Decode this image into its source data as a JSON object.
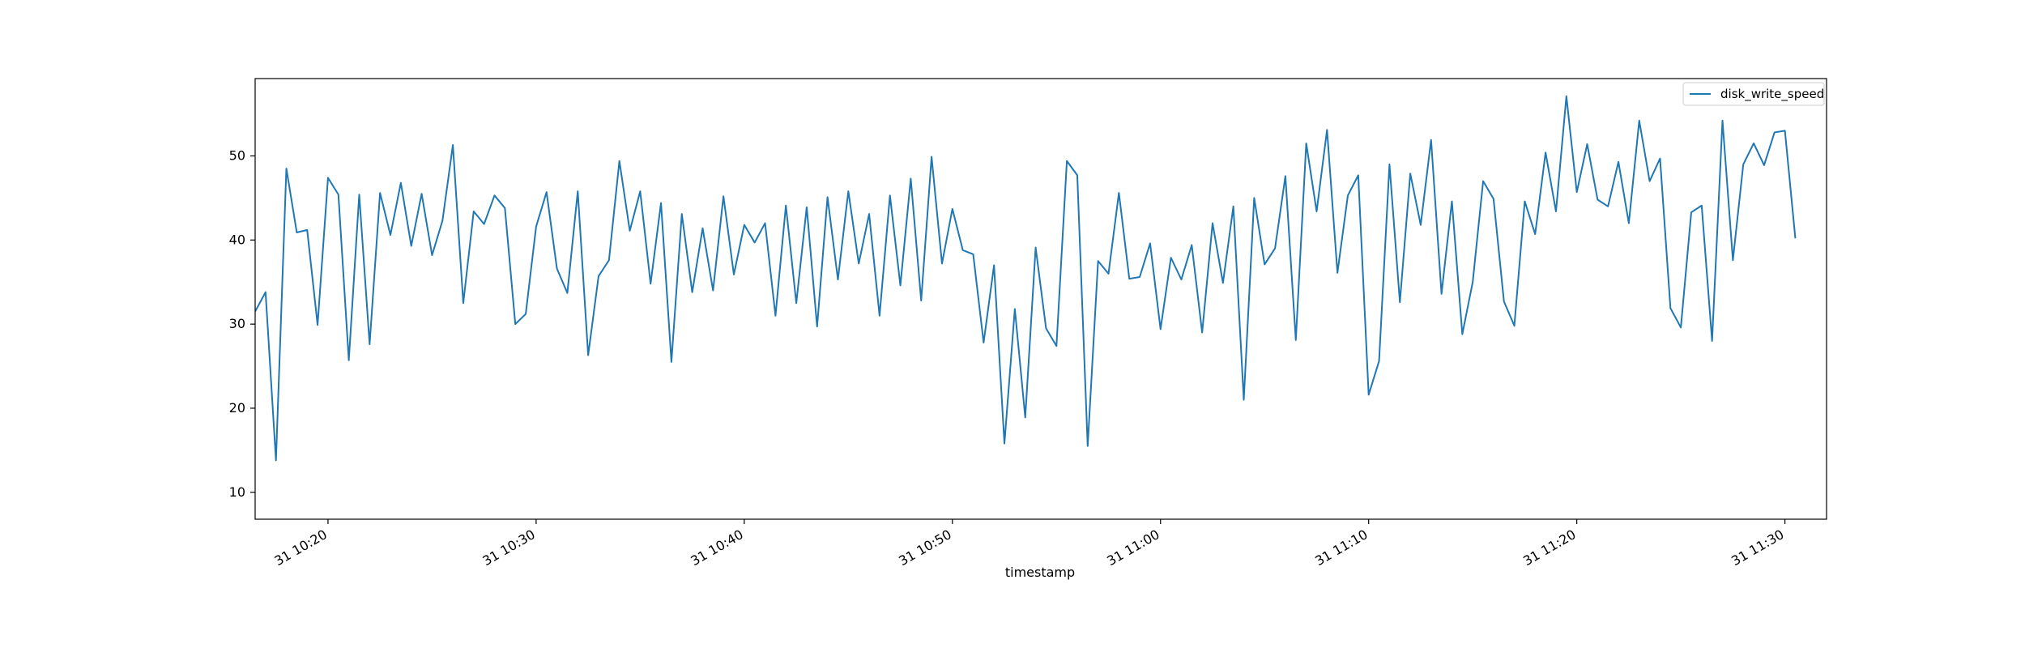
{
  "chart_data": {
    "type": "line",
    "title": "",
    "xlabel": "timestamp",
    "ylabel": "",
    "x_ticks": [
      "31 10:20",
      "31 10:30",
      "31 10:40",
      "31 10:50",
      "31 11:00",
      "31 11:10",
      "31 11:20",
      "31 11:30"
    ],
    "y_ticks": [
      10,
      20,
      30,
      40,
      50
    ],
    "xlim": [
      "10:16:30",
      "11:32:00"
    ],
    "ylim": [
      6.8,
      59.2
    ],
    "legend_position": "upper-right",
    "grid": false,
    "series": [
      {
        "name": "disk_write_speed",
        "color": "#1f77b4",
        "points": [
          [
            "10:16:30",
            31.5
          ],
          [
            "10:17:00",
            33.8
          ],
          [
            "10:17:30",
            13.8
          ],
          [
            "10:18:00",
            48.5
          ],
          [
            "10:18:30",
            40.9
          ],
          [
            "10:19:00",
            41.2
          ],
          [
            "10:19:30",
            29.9
          ],
          [
            "10:20:00",
            47.4
          ],
          [
            "10:20:30",
            45.4
          ],
          [
            "10:21:00",
            25.7
          ],
          [
            "10:21:30",
            45.4
          ],
          [
            "10:22:00",
            27.6
          ],
          [
            "10:22:30",
            45.6
          ],
          [
            "10:23:00",
            40.6
          ],
          [
            "10:23:30",
            46.8
          ],
          [
            "10:24:00",
            39.3
          ],
          [
            "10:24:30",
            45.5
          ],
          [
            "10:25:00",
            38.2
          ],
          [
            "10:25:30",
            42.3
          ],
          [
            "10:26:00",
            51.3
          ],
          [
            "10:26:30",
            32.5
          ],
          [
            "10:27:00",
            43.4
          ],
          [
            "10:27:30",
            41.9
          ],
          [
            "10:28:00",
            45.3
          ],
          [
            "10:28:30",
            43.8
          ],
          [
            "10:29:00",
            30.0
          ],
          [
            "10:29:30",
            31.2
          ],
          [
            "10:30:00",
            41.6
          ],
          [
            "10:30:30",
            45.7
          ],
          [
            "10:31:00",
            36.6
          ],
          [
            "10:31:30",
            33.7
          ],
          [
            "10:32:00",
            45.8
          ],
          [
            "10:32:30",
            26.3
          ],
          [
            "10:33:00",
            35.7
          ],
          [
            "10:33:30",
            37.6
          ],
          [
            "10:34:00",
            49.4
          ],
          [
            "10:34:30",
            41.1
          ],
          [
            "10:35:00",
            45.8
          ],
          [
            "10:35:30",
            34.8
          ],
          [
            "10:36:00",
            44.4
          ],
          [
            "10:36:30",
            25.5
          ],
          [
            "10:37:00",
            43.1
          ],
          [
            "10:37:30",
            33.8
          ],
          [
            "10:38:00",
            41.4
          ],
          [
            "10:38:30",
            34.0
          ],
          [
            "10:39:00",
            45.2
          ],
          [
            "10:39:30",
            35.9
          ],
          [
            "10:40:00",
            41.8
          ],
          [
            "10:40:30",
            39.7
          ],
          [
            "10:41:00",
            42.0
          ],
          [
            "10:41:30",
            31.0
          ],
          [
            "10:42:00",
            44.1
          ],
          [
            "10:42:30",
            32.5
          ],
          [
            "10:43:00",
            43.9
          ],
          [
            "10:43:30",
            29.7
          ],
          [
            "10:44:00",
            45.1
          ],
          [
            "10:44:30",
            35.3
          ],
          [
            "10:45:00",
            45.8
          ],
          [
            "10:45:30",
            37.2
          ],
          [
            "10:46:00",
            43.1
          ],
          [
            "10:46:30",
            31.0
          ],
          [
            "10:47:00",
            45.3
          ],
          [
            "10:47:30",
            34.6
          ],
          [
            "10:48:00",
            47.3
          ],
          [
            "10:48:30",
            32.8
          ],
          [
            "10:49:00",
            49.9
          ],
          [
            "10:49:30",
            37.2
          ],
          [
            "10:50:00",
            43.7
          ],
          [
            "10:50:30",
            38.8
          ],
          [
            "10:51:00",
            38.3
          ],
          [
            "10:51:30",
            27.8
          ],
          [
            "10:52:00",
            37.0
          ],
          [
            "10:52:30",
            15.8
          ],
          [
            "10:53:00",
            31.8
          ],
          [
            "10:53:30",
            18.9
          ],
          [
            "10:54:00",
            39.1
          ],
          [
            "10:54:30",
            29.5
          ],
          [
            "10:55:00",
            27.4
          ],
          [
            "10:55:30",
            49.4
          ],
          [
            "10:56:00",
            47.7
          ],
          [
            "10:56:30",
            15.5
          ],
          [
            "10:57:00",
            37.5
          ],
          [
            "10:57:30",
            36.0
          ],
          [
            "10:58:00",
            45.6
          ],
          [
            "10:58:30",
            35.4
          ],
          [
            "10:59:00",
            35.6
          ],
          [
            "10:59:30",
            39.6
          ],
          [
            "11:00:00",
            29.4
          ],
          [
            "11:00:30",
            37.9
          ],
          [
            "11:01:00",
            35.3
          ],
          [
            "11:01:30",
            39.4
          ],
          [
            "11:02:00",
            29.0
          ],
          [
            "11:02:30",
            42.0
          ],
          [
            "11:03:00",
            34.9
          ],
          [
            "11:03:30",
            44.0
          ],
          [
            "11:04:00",
            21.0
          ],
          [
            "11:04:30",
            45.0
          ],
          [
            "11:05:00",
            37.1
          ],
          [
            "11:05:30",
            39.0
          ],
          [
            "11:06:00",
            47.6
          ],
          [
            "11:06:30",
            28.1
          ],
          [
            "11:07:00",
            51.5
          ],
          [
            "11:07:30",
            43.4
          ],
          [
            "11:08:00",
            53.1
          ],
          [
            "11:08:30",
            36.1
          ],
          [
            "11:09:00",
            45.3
          ],
          [
            "11:09:30",
            47.7
          ],
          [
            "11:10:00",
            21.6
          ],
          [
            "11:10:30",
            25.6
          ],
          [
            "11:11:00",
            49.0
          ],
          [
            "11:11:30",
            32.6
          ],
          [
            "11:12:00",
            47.9
          ],
          [
            "11:12:30",
            41.8
          ],
          [
            "11:13:00",
            51.9
          ],
          [
            "11:13:30",
            33.6
          ],
          [
            "11:14:00",
            44.6
          ],
          [
            "11:14:30",
            28.8
          ],
          [
            "11:15:00",
            35.0
          ],
          [
            "11:15:30",
            47.0
          ],
          [
            "11:16:00",
            44.9
          ],
          [
            "11:16:30",
            32.7
          ],
          [
            "11:17:00",
            29.8
          ],
          [
            "11:17:30",
            44.6
          ],
          [
            "11:18:00",
            40.7
          ],
          [
            "11:18:30",
            50.4
          ],
          [
            "11:19:00",
            43.4
          ],
          [
            "11:19:30",
            57.1
          ],
          [
            "11:20:00",
            45.7
          ],
          [
            "11:20:30",
            51.4
          ],
          [
            "11:21:00",
            44.8
          ],
          [
            "11:21:30",
            44.0
          ],
          [
            "11:22:00",
            49.3
          ],
          [
            "11:22:30",
            42.0
          ],
          [
            "11:23:00",
            54.2
          ],
          [
            "11:23:30",
            47.0
          ],
          [
            "11:24:00",
            49.7
          ],
          [
            "11:24:30",
            31.9
          ],
          [
            "11:25:00",
            29.6
          ],
          [
            "11:25:30",
            43.3
          ],
          [
            "11:26:00",
            44.1
          ],
          [
            "11:26:30",
            28.0
          ],
          [
            "11:27:00",
            54.2
          ],
          [
            "11:27:30",
            37.6
          ],
          [
            "11:28:00",
            49.0
          ],
          [
            "11:28:30",
            51.5
          ],
          [
            "11:29:00",
            48.9
          ],
          [
            "11:29:30",
            52.8
          ],
          [
            "11:30:00",
            53.0
          ],
          [
            "11:30:30",
            40.2
          ]
        ]
      }
    ]
  },
  "legend": {
    "label": "disk_write_speed"
  }
}
